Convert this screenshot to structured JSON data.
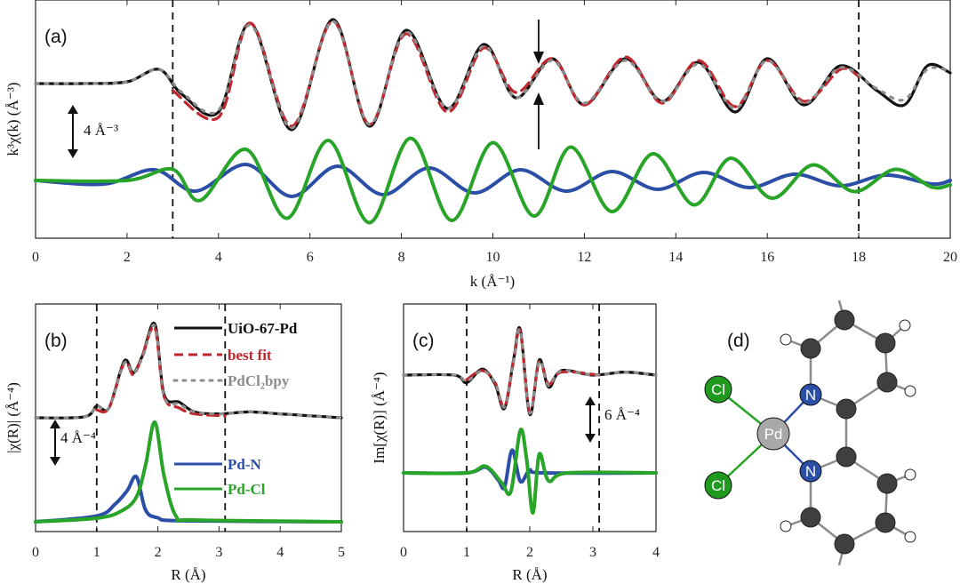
{
  "panels": {
    "a": {
      "label": "(a)",
      "xlabel": "k (Å⁻¹)",
      "ylabel": "k³χ(k) (Å⁻³)",
      "scale_label": "4 Å⁻³"
    },
    "b": {
      "label": "(b)",
      "xlabel": "R (Å)",
      "ylabel": "|χ(R)| (Å⁻⁴)",
      "scale_label": "4 Å⁻⁴"
    },
    "c": {
      "label": "(c)",
      "xlabel": "R (Å)",
      "ylabel": "Im[χ(R)] (Å⁻⁴)",
      "scale_label": "6 Å⁻⁴"
    },
    "d": {
      "label": "(d)"
    }
  },
  "legend": [
    {
      "name": "UiO-67-Pd",
      "color": "#111111",
      "style": "solid"
    },
    {
      "name": "best fit",
      "color": "#c0262d",
      "style": "dashed"
    },
    {
      "name": "PdCl₂bpy",
      "color": "#8c8c8c",
      "style": "dotted"
    },
    {
      "name": "Pd-N",
      "color": "#2b4ea6",
      "style": "solid"
    },
    {
      "name": "Pd-Cl",
      "color": "#28a428",
      "style": "solid"
    }
  ],
  "molecule": {
    "atoms": {
      "cl": "Cl",
      "pd": "Pd",
      "n": "N"
    }
  },
  "colors": {
    "black": "#111111",
    "red": "#c0262d",
    "gray": "#8c8c8c",
    "blue": "#2b4ea6",
    "green": "#28a428"
  },
  "chart_data": [
    {
      "id": "a",
      "type": "line",
      "xlim": [
        0,
        20
      ],
      "xticks": [
        "0",
        "2",
        "4",
        "6",
        "8",
        "10",
        "12",
        "14",
        "16",
        "18",
        "20"
      ],
      "fit_window": [
        3,
        18
      ],
      "arrow_at": 11,
      "series": [
        {
          "name": "UiO-67-Pd",
          "x": [
            0,
            1,
            2,
            2.7,
            3.2,
            4,
            4.7,
            5.6,
            6.5,
            7.3,
            8.1,
            9,
            9.8,
            10.5,
            11.3,
            12,
            12.9,
            13.7,
            14.5,
            15.3,
            16,
            16.8,
            17.6,
            18.4,
            19,
            19.5,
            20
          ],
          "y": [
            0,
            0,
            0.1,
            0.8,
            -0.6,
            -1.6,
            3.4,
            -2.6,
            3.6,
            -2.4,
            3.0,
            -1.4,
            2.2,
            -0.8,
            1.4,
            -1.2,
            1.4,
            -1.0,
            1.2,
            -1.6,
            1.4,
            -1.2,
            1.0,
            -0.4,
            -1.2,
            1.0,
            0.6
          ]
        },
        {
          "name": "best fit",
          "x": [
            3,
            4,
            4.7,
            5.6,
            6.5,
            7.3,
            8.1,
            9,
            9.8,
            10.5,
            11.3,
            12,
            12.9,
            13.7,
            14.5,
            15.3,
            16,
            16.8,
            17.6,
            18
          ],
          "y": [
            -0.4,
            -1.9,
            3.4,
            -2.4,
            3.5,
            -2.3,
            2.8,
            -1.6,
            2.0,
            -0.5,
            1.4,
            -1.2,
            1.5,
            -1.1,
            1.3,
            -1.3,
            1.3,
            -1.0,
            0.8,
            0.4
          ]
        },
        {
          "name": "PdCl₂bpy",
          "x": [
            0,
            1,
            2,
            2.7,
            3.2,
            4,
            4.7,
            5.6,
            6.5,
            7.3,
            8.1,
            9,
            9.8,
            10.5,
            11.3,
            12,
            12.9,
            13.7,
            14.5,
            15.3,
            16,
            16.8,
            17.6,
            18.4,
            19,
            19.5,
            20
          ],
          "y": [
            0,
            0,
            0.1,
            0.8,
            -0.5,
            -1.5,
            3.3,
            -2.5,
            3.5,
            -2.3,
            2.9,
            -1.4,
            2.1,
            -0.8,
            1.3,
            -1.1,
            1.3,
            -1.0,
            1.1,
            -1.4,
            1.3,
            -1.1,
            0.9,
            -0.3,
            -0.9,
            0.8,
            0.7
          ]
        },
        {
          "name": "Pd-N",
          "x": [
            0,
            1.5,
            2.6,
            3.5,
            4.6,
            5.6,
            6.6,
            7.6,
            8.6,
            9.6,
            10.6,
            11.6,
            12.6,
            13.6,
            14.6,
            15.6,
            16.6,
            17.6,
            18.6,
            19.6,
            20
          ],
          "y": [
            0,
            -0.2,
            0.6,
            -0.6,
            0.9,
            -0.9,
            0.8,
            -0.8,
            0.7,
            -0.7,
            0.6,
            -0.6,
            0.5,
            -0.5,
            0.45,
            -0.4,
            0.35,
            -0.3,
            0.3,
            -0.2,
            0
          ]
        },
        {
          "name": "Pd-Cl",
          "x": [
            0,
            2,
            3,
            3.6,
            4.6,
            5.5,
            6.4,
            7.3,
            8.2,
            9.1,
            10,
            10.9,
            11.7,
            12.6,
            13.5,
            14.4,
            15.2,
            16.1,
            17,
            17.9,
            18.8,
            19.6,
            20
          ],
          "y": [
            0,
            0,
            0.5,
            -0.9,
            1.4,
            -1.7,
            1.8,
            -1.9,
            1.9,
            -1.8,
            1.7,
            -1.6,
            1.5,
            -1.4,
            1.2,
            -1.1,
            1.0,
            -0.8,
            0.7,
            -0.5,
            0.5,
            -0.3,
            -0.2
          ]
        }
      ]
    },
    {
      "id": "b",
      "type": "line",
      "xlim": [
        0,
        5
      ],
      "xticks": [
        "0",
        "1",
        "2",
        "3",
        "4",
        "5"
      ],
      "fit_window": [
        1,
        3.1
      ],
      "series": [
        {
          "name": "UiO-67-Pd",
          "x": [
            0,
            0.8,
            1.0,
            1.2,
            1.45,
            1.6,
            1.75,
            1.95,
            2.1,
            2.35,
            2.6,
            3,
            3.5,
            4,
            4.5,
            5
          ],
          "y": [
            0,
            0.05,
            0.6,
            0.5,
            2.9,
            2.3,
            3.2,
            4.8,
            1.2,
            0.8,
            0.3,
            0.2,
            0.3,
            0.2,
            0.1,
            0
          ]
        },
        {
          "name": "best fit",
          "x": [
            1.0,
            1.2,
            1.45,
            1.6,
            1.75,
            1.95,
            2.1,
            2.35,
            2.6,
            3.1
          ],
          "y": [
            0.4,
            0.5,
            2.8,
            2.2,
            3.2,
            4.6,
            1.1,
            0.5,
            0.2,
            0.1
          ]
        },
        {
          "name": "PdCl₂bpy",
          "x": [
            0,
            0.8,
            1.0,
            1.2,
            1.45,
            1.6,
            1.75,
            1.95,
            2.1,
            2.35,
            2.6,
            3,
            3.5,
            4,
            4.5,
            5
          ],
          "y": [
            0,
            0.05,
            0.6,
            0.5,
            2.8,
            2.3,
            3.1,
            4.7,
            1.1,
            0.7,
            0.3,
            0.2,
            0.3,
            0.2,
            0.1,
            0
          ]
        },
        {
          "name": "Pd-N",
          "x": [
            0,
            1,
            1.3,
            1.5,
            1.65,
            1.8,
            2.0,
            2.4,
            5
          ],
          "y": [
            0,
            0.3,
            0.9,
            1.6,
            2.3,
            0.6,
            0.2,
            0.05,
            0
          ]
        },
        {
          "name": "Pd-Cl",
          "x": [
            0,
            1,
            1.4,
            1.65,
            1.8,
            1.95,
            2.1,
            2.3,
            2.6,
            5
          ],
          "y": [
            0,
            0.2,
            0.6,
            1.4,
            3.2,
            5.6,
            2.6,
            0.3,
            0.1,
            0
          ]
        }
      ]
    },
    {
      "id": "c",
      "type": "line",
      "xlim": [
        0,
        4
      ],
      "xticks": [
        "0",
        "1",
        "2",
        "3",
        "4"
      ],
      "fit_window": [
        1,
        3.1
      ],
      "series": [
        {
          "name": "UiO-67-Pd",
          "x": [
            0,
            0.8,
            1.0,
            1.25,
            1.45,
            1.6,
            1.75,
            1.85,
            2.0,
            2.15,
            2.3,
            2.5,
            3,
            3.5,
            4
          ],
          "y": [
            0,
            0,
            -0.5,
            0.4,
            -0.6,
            -2.2,
            1.2,
            3.0,
            -2.6,
            1.0,
            -0.8,
            0.3,
            0,
            0.2,
            0
          ]
        },
        {
          "name": "best fit",
          "x": [
            1.0,
            1.25,
            1.45,
            1.6,
            1.75,
            1.85,
            2.0,
            2.15,
            2.3,
            2.5,
            3.1
          ],
          "y": [
            -0.3,
            0.3,
            -0.5,
            -2.1,
            1.1,
            2.9,
            -2.5,
            0.9,
            -0.6,
            0.2,
            0
          ]
        },
        {
          "name": "PdCl₂bpy",
          "x": [
            0,
            0.8,
            1.0,
            1.25,
            1.45,
            1.6,
            1.75,
            1.85,
            2.0,
            2.15,
            2.3,
            2.5,
            3,
            3.5,
            4
          ],
          "y": [
            0,
            0,
            -0.4,
            0.3,
            -0.5,
            -2.1,
            1.1,
            2.9,
            -2.5,
            0.9,
            -0.7,
            0.3,
            0,
            0.2,
            0
          ]
        },
        {
          "name": "Pd-N",
          "x": [
            0,
            1,
            1.3,
            1.5,
            1.6,
            1.72,
            1.85,
            2.0,
            2.2,
            4
          ],
          "y": [
            0,
            0,
            0.4,
            -0.5,
            -1.0,
            1.6,
            -0.6,
            0.2,
            0,
            0
          ]
        },
        {
          "name": "Pd-Cl",
          "x": [
            0,
            1,
            1.3,
            1.55,
            1.7,
            1.85,
            1.95,
            2.05,
            2.15,
            2.3,
            2.6,
            4
          ],
          "y": [
            0,
            0,
            0.5,
            -0.7,
            -1.4,
            3.2,
            1.0,
            -3.0,
            1.4,
            -0.6,
            0,
            0
          ]
        }
      ]
    }
  ]
}
